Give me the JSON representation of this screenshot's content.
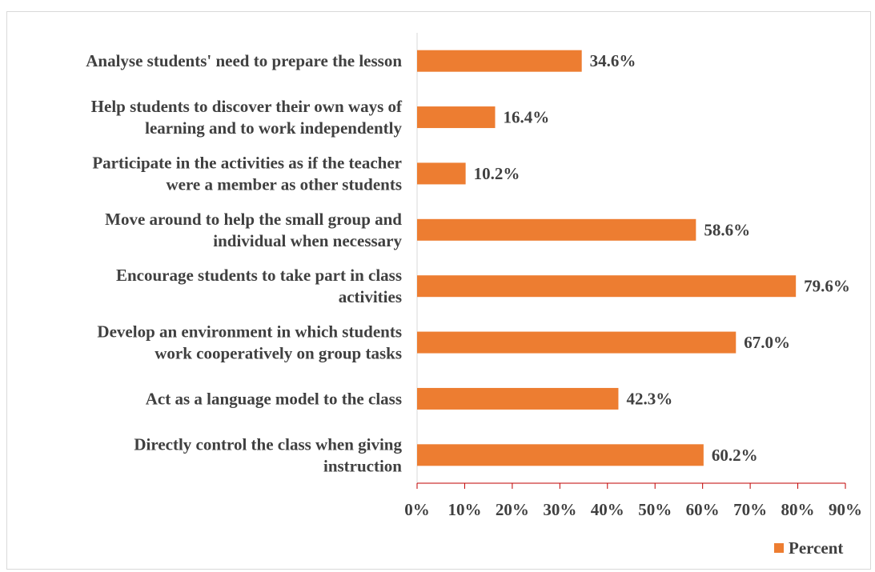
{
  "chart_data": {
    "type": "bar",
    "orientation": "horizontal",
    "categories": [
      [
        "Analyse students' need to prepare the lesson"
      ],
      [
        "Help students to discover their own ways of",
        "learning and to work independently"
      ],
      [
        "Participate in the activities as if the teacher",
        "were a member as other students"
      ],
      [
        "Move around to help the small group and",
        "individual when necessary"
      ],
      [
        "Encourage students to take part in class",
        "activities"
      ],
      [
        "Develop an environment in which students",
        "work cooperatively on group tasks"
      ],
      [
        "Act as a language model to the class"
      ],
      [
        "Directly control the class when giving",
        "instruction"
      ]
    ],
    "series": [
      {
        "name": "Percent",
        "color": "#ED7D31",
        "values": [
          34.6,
          16.4,
          10.2,
          58.6,
          79.6,
          67.0,
          42.3,
          60.2
        ],
        "labels": [
          "34.6%",
          "16.4%",
          "10.2%",
          "58.6%",
          "79.6%",
          "67.0%",
          "42.3%",
          "60.2%"
        ]
      }
    ],
    "xlim": [
      0,
      90
    ],
    "xticks": [
      0,
      10,
      20,
      30,
      40,
      50,
      60,
      70,
      80,
      90
    ],
    "xtick_labels": [
      "0%",
      "10%",
      "20%",
      "30%",
      "40%",
      "50%",
      "60%",
      "70%",
      "80%",
      "90%"
    ],
    "axis_color": "#C00000",
    "grid": false,
    "legend": {
      "position": "bottom-right",
      "entries": [
        "Percent"
      ]
    },
    "title": "",
    "xlabel": "",
    "ylabel": ""
  }
}
